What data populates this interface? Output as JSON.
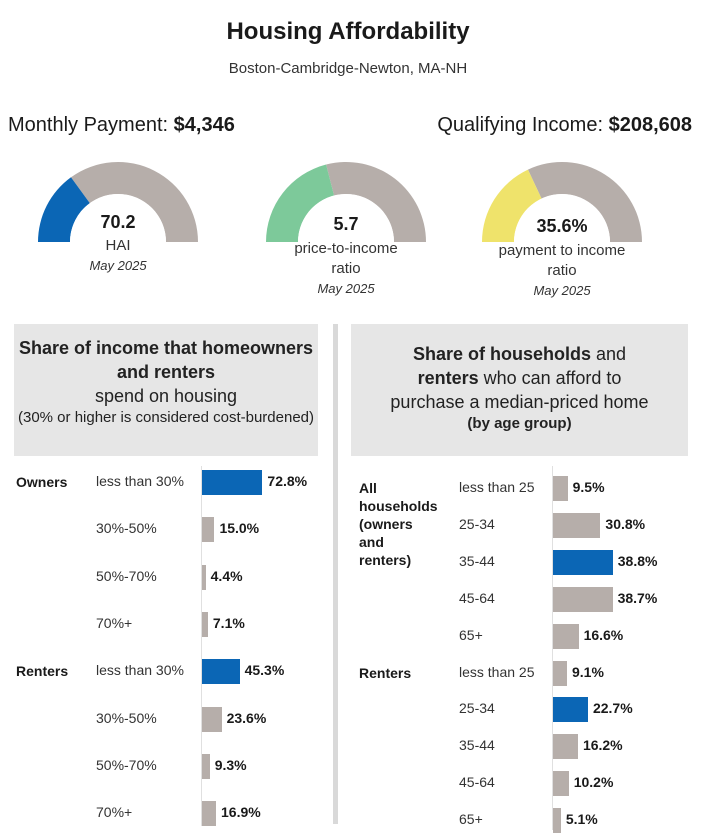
{
  "header": {
    "title": "Housing Affordability",
    "subtitle": "Boston-Cambridge-Newton, MA-NH"
  },
  "metrics": {
    "monthly_payment_label": "Monthly Payment:",
    "monthly_payment_value": "$4,346",
    "qualifying_income_label": "Qualifying Income:",
    "qualifying_income_value": "$208,608"
  },
  "gauges": [
    {
      "value": "70.2",
      "label": "HAI",
      "date": "May 2025",
      "fill_fraction": 0.3,
      "color": "#0b66b5"
    },
    {
      "value": "5.7",
      "label": "price-to-income ratio",
      "date": "May 2025",
      "fill_fraction": 0.42,
      "color": "#7dc99a"
    },
    {
      "value": "35.6%",
      "label": "payment to income ratio",
      "date": "May 2025",
      "fill_fraction": 0.36,
      "color": "#efe36b"
    }
  ],
  "colors": {
    "highlight": "#0b66b5",
    "neutral": "#b6aeaa",
    "gauge_track": "#b6aeaa",
    "panel_bg": "#e6e6e6"
  },
  "left_panel": {
    "title_bold": "Share of income that homeowners and renters",
    "title_rest": "spend on housing",
    "note": "(30% or higher is considered cost-burdened)"
  },
  "right_panel": {
    "t1_bold": "Share of households",
    "t1_rest": " and",
    "t2_bold": "renters",
    "t2_rest": " who can afford to",
    "t3": "purchase a median-priced home",
    "t4": "(by age group)"
  },
  "chart_data": [
    {
      "type": "bar",
      "title": "Share of income that homeowners and renters spend on housing",
      "categories": [
        "less than 30%",
        "30%-50%",
        "50%-70%",
        "70%+"
      ],
      "series": [
        {
          "name": "Owners",
          "values": [
            72.8,
            15.0,
            4.4,
            7.1
          ],
          "labels": [
            "72.8%",
            "15.0%",
            "4.4%",
            "7.1%"
          ]
        },
        {
          "name": "Renters",
          "values": [
            45.3,
            23.6,
            9.3,
            16.9
          ],
          "labels": [
            "45.3%",
            "23.6%",
            "9.3%",
            "16.9%"
          ]
        }
      ],
      "highlight_index": 0
    },
    {
      "type": "bar",
      "title": "Share of households and renters who can afford to purchase a median-priced home (by age group)",
      "categories": [
        "less than 25",
        "25-34",
        "35-44",
        "45-64",
        "65+"
      ],
      "series": [
        {
          "name": "All households (owners and renters)",
          "values": [
            9.5,
            30.8,
            38.8,
            38.7,
            16.6
          ],
          "labels": [
            "9.5%",
            "30.8%",
            "38.8%",
            "38.7%",
            "16.6%"
          ],
          "highlight_index": 2
        },
        {
          "name": "Renters",
          "values": [
            9.1,
            22.7,
            16.2,
            10.2,
            5.1
          ],
          "labels": [
            "9.1%",
            "22.7%",
            "16.2%",
            "10.2%",
            "5.1%"
          ],
          "highlight_index": 1
        }
      ]
    }
  ]
}
